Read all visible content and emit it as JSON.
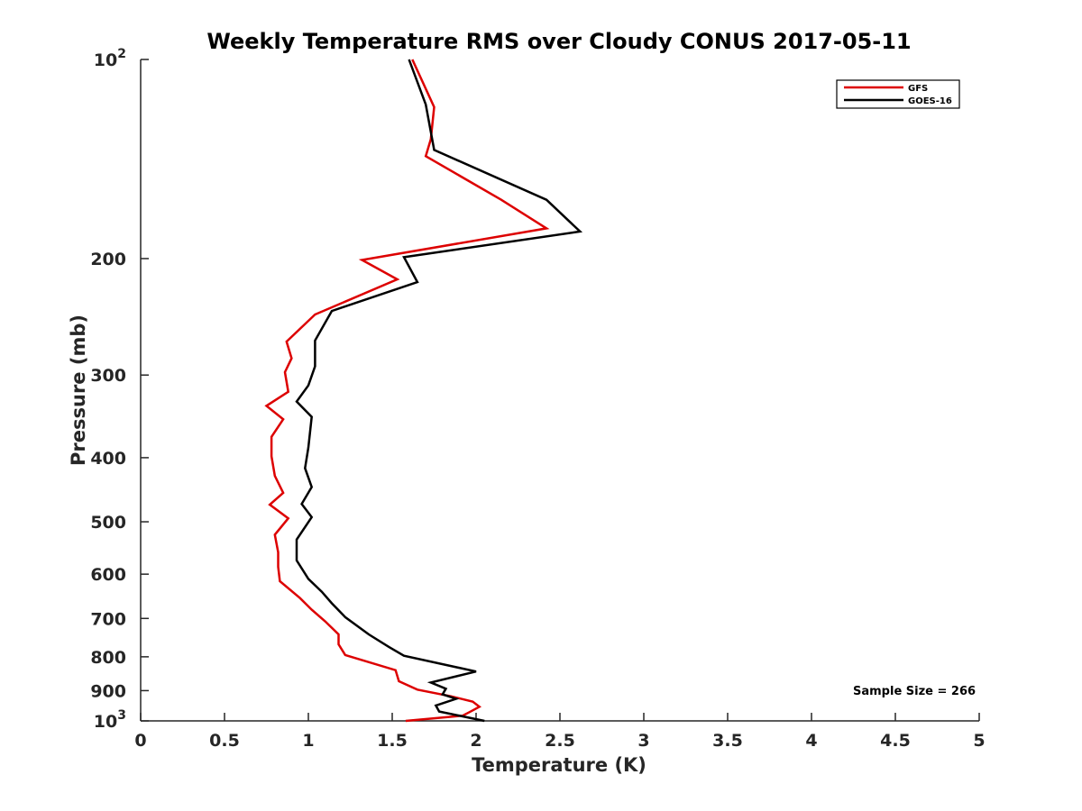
{
  "chart_data": {
    "type": "line",
    "title": "Weekly Temperature RMS over Cloudy CONUS 2017-05-11",
    "xlabel": "Temperature (K)",
    "ylabel": "Pressure (mb)",
    "xlim": [
      0,
      5
    ],
    "ylim": [
      100,
      1000
    ],
    "y_scale": "log",
    "y_reversed": true,
    "grid": false,
    "legend_position": "top-right",
    "annotation": "Sample Size = 266",
    "x_ticks": [
      "0",
      "0.5",
      "1",
      "1.5",
      "2",
      "2.5",
      "3",
      "3.5",
      "4",
      "4.5",
      "5"
    ],
    "y_ticks": [
      {
        "value": 100,
        "base": "10",
        "exp": "2"
      },
      {
        "value": 200,
        "label": "200"
      },
      {
        "value": 300,
        "label": "300"
      },
      {
        "value": 400,
        "label": "400"
      },
      {
        "value": 500,
        "label": "500"
      },
      {
        "value": 600,
        "label": "600"
      },
      {
        "value": 700,
        "label": "700"
      },
      {
        "value": 800,
        "label": "800"
      },
      {
        "value": 900,
        "label": "900"
      },
      {
        "value": 1000,
        "base": "10",
        "exp": "3"
      }
    ],
    "series": [
      {
        "name": "GFS",
        "color": "#dd0000",
        "points": [
          [
            1.62,
            100
          ],
          [
            1.75,
            118
          ],
          [
            1.73,
            132
          ],
          [
            1.7,
            140
          ],
          [
            2.15,
            163
          ],
          [
            2.42,
            180
          ],
          [
            1.32,
            201
          ],
          [
            1.53,
            215
          ],
          [
            1.04,
            243
          ],
          [
            0.87,
            267
          ],
          [
            0.9,
            283
          ],
          [
            0.86,
            297
          ],
          [
            0.88,
            318
          ],
          [
            0.75,
            334
          ],
          [
            0.85,
            350
          ],
          [
            0.78,
            372
          ],
          [
            0.78,
            398
          ],
          [
            0.8,
            426
          ],
          [
            0.85,
            452
          ],
          [
            0.77,
            471
          ],
          [
            0.88,
            494
          ],
          [
            0.8,
            523
          ],
          [
            0.82,
            556
          ],
          [
            0.82,
            585
          ],
          [
            0.83,
            615
          ],
          [
            0.95,
            652
          ],
          [
            1.02,
            679
          ],
          [
            1.1,
            707
          ],
          [
            1.18,
            740
          ],
          [
            1.18,
            766
          ],
          [
            1.22,
            795
          ],
          [
            1.52,
            838
          ],
          [
            1.54,
            871
          ],
          [
            1.65,
            897
          ],
          [
            1.85,
            918
          ],
          [
            1.98,
            935
          ],
          [
            2.02,
            952
          ],
          [
            1.96,
            970
          ],
          [
            1.92,
            982
          ],
          [
            1.58,
            1000
          ]
        ]
      },
      {
        "name": "GOES-16",
        "color": "#000000",
        "points": [
          [
            1.6,
            100
          ],
          [
            1.7,
            117
          ],
          [
            1.75,
            137
          ],
          [
            2.42,
            163
          ],
          [
            2.62,
            182
          ],
          [
            1.57,
            199
          ],
          [
            1.65,
            217
          ],
          [
            1.14,
            240
          ],
          [
            1.04,
            266
          ],
          [
            1.04,
            291
          ],
          [
            1.0,
            311
          ],
          [
            0.93,
            329
          ],
          [
            1.02,
            347
          ],
          [
            1.0,
            386
          ],
          [
            0.98,
            415
          ],
          [
            1.02,
            443
          ],
          [
            0.96,
            470
          ],
          [
            1.02,
            492
          ],
          [
            0.93,
            532
          ],
          [
            0.93,
            572
          ],
          [
            1.0,
            610
          ],
          [
            1.08,
            638
          ],
          [
            1.14,
            664
          ],
          [
            1.22,
            697
          ],
          [
            1.36,
            740
          ],
          [
            1.48,
            773
          ],
          [
            1.57,
            797
          ],
          [
            2.0,
            842
          ],
          [
            1.73,
            875
          ],
          [
            1.82,
            894
          ],
          [
            1.8,
            912
          ],
          [
            1.88,
            926
          ],
          [
            1.76,
            948
          ],
          [
            1.78,
            968
          ],
          [
            2.05,
            1000
          ]
        ]
      }
    ]
  }
}
